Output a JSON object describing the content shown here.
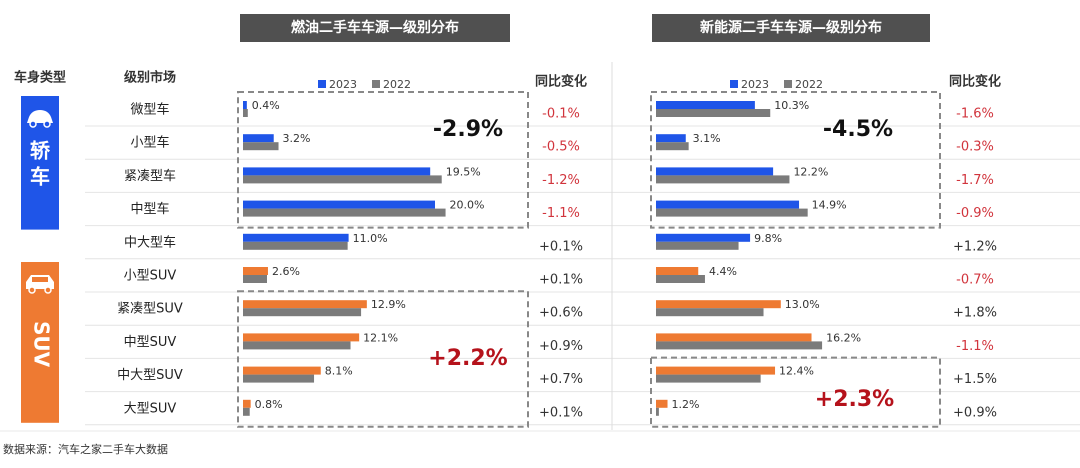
{
  "colors": {
    "y2023_sedan": "#1f55e8",
    "y2023_suv": "#ee7a32",
    "y2022": "#7b7b7b",
    "title_bg": "#505050",
    "sedan_badge": "#1f55e8",
    "suv_badge": "#ee7a32",
    "negative": "#d1343c",
    "positive": "#333333",
    "highlight_positive": "#b5121b"
  },
  "header": {
    "body_type": "车身类型",
    "segment": "级别市场"
  },
  "groups": [
    {
      "label": "轿车",
      "icon": "sedan-car-icon"
    },
    {
      "label": "SUV",
      "icon": "suv-car-icon"
    }
  ],
  "categories": [
    "微型车",
    "小型车",
    "紧凑型车",
    "中型车",
    "中大型车",
    "小型SUV",
    "紧凑型SUV",
    "中型SUV",
    "中大型SUV",
    "大型SUV"
  ],
  "source_note": "数据来源：汽车之家二手车大数据",
  "chart_data": [
    {
      "type": "bar",
      "title": "燃油二手车车源—级别分布",
      "categories": [
        "微型车",
        "小型车",
        "紧凑型车",
        "中型车",
        "中大型车",
        "小型SUV",
        "紧凑型SUV",
        "中型SUV",
        "中大型SUV",
        "大型SUV"
      ],
      "series": [
        {
          "name": "2023",
          "values": [
            0.4,
            3.2,
            19.5,
            20.0,
            11.0,
            2.6,
            12.9,
            12.1,
            8.1,
            0.8
          ]
        },
        {
          "name": "2022",
          "values": [
            0.5,
            3.7,
            20.7,
            21.1,
            10.9,
            2.5,
            12.3,
            11.2,
            7.4,
            0.7
          ]
        }
      ],
      "value_labels": [
        "0.4%",
        "3.2%",
        "19.5%",
        "20.0%",
        "11.0%",
        "2.6%",
        "12.9%",
        "12.1%",
        "8.1%",
        "0.8%"
      ],
      "change_header": "同比变化",
      "changes": [
        "-0.1%",
        "-0.5%",
        "-1.2%",
        "-1.1%",
        "+0.1%",
        "+0.1%",
        "+0.6%",
        "+0.9%",
        "+0.7%",
        "+0.1%"
      ],
      "highlight_groups": [
        {
          "label": "-2.9%",
          "rows": [
            0,
            3
          ],
          "sign": "negative"
        },
        {
          "label": "+2.2%",
          "rows": [
            6,
            9
          ],
          "sign": "positive"
        }
      ],
      "legend_placement": "top"
    },
    {
      "type": "bar",
      "title": "新能源二手车车源—级别分布",
      "categories": [
        "微型车",
        "小型车",
        "紧凑型车",
        "中型车",
        "中大型车",
        "小型SUV",
        "紧凑型SUV",
        "中型SUV",
        "中大型SUV",
        "大型SUV"
      ],
      "series": [
        {
          "name": "2023",
          "values": [
            10.3,
            3.1,
            12.2,
            14.9,
            9.8,
            4.4,
            13.0,
            16.2,
            12.4,
            1.2
          ]
        },
        {
          "name": "2022",
          "values": [
            11.9,
            3.4,
            13.9,
            15.8,
            8.6,
            5.1,
            11.2,
            17.3,
            10.9,
            0.3
          ]
        }
      ],
      "value_labels": [
        "10.3%",
        "3.1%",
        "12.2%",
        "14.9%",
        "9.8%",
        "4.4%",
        "13.0%",
        "16.2%",
        "12.4%",
        "1.2%"
      ],
      "change_header": "同比变化",
      "changes": [
        "-1.6%",
        "-0.3%",
        "-1.7%",
        "-0.9%",
        "+1.2%",
        "-0.7%",
        "+1.8%",
        "-1.1%",
        "+1.5%",
        "+0.9%"
      ],
      "highlight_groups": [
        {
          "label": "-4.5%",
          "rows": [
            0,
            3
          ],
          "sign": "negative"
        },
        {
          "label": "+2.3%",
          "rows": [
            8,
            9
          ],
          "sign": "positive"
        }
      ],
      "legend_placement": "top"
    }
  ]
}
